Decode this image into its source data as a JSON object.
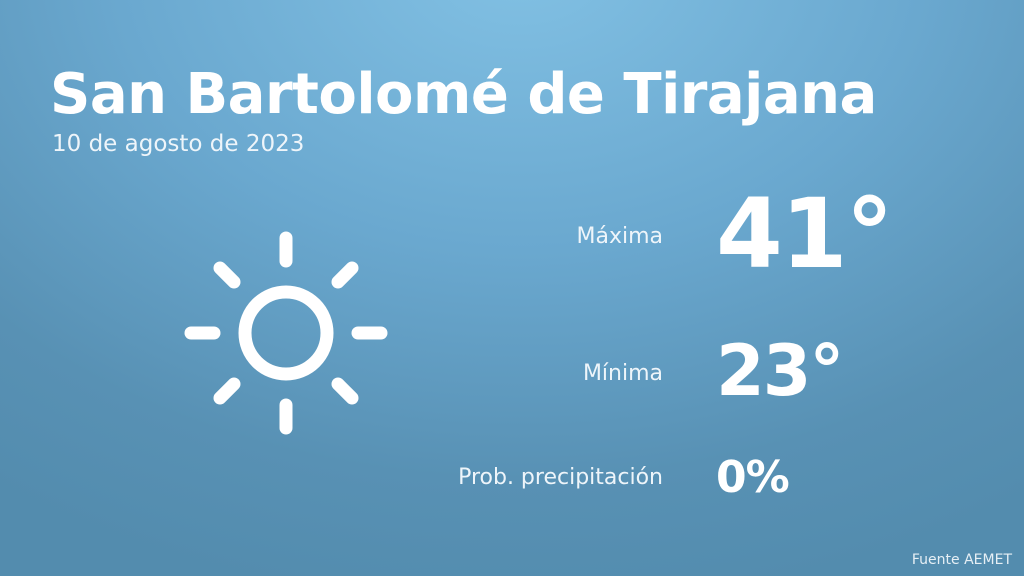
{
  "header": {
    "title": "San Bartolomé de Tirajana",
    "date": "10 de agosto de 2023"
  },
  "weather": {
    "icon": "sun-icon",
    "max_label": "Máxima",
    "max_value": "41°",
    "min_label": "Mínima",
    "min_value": "23°",
    "precip_label": "Prob. precipitación",
    "precip_value": "0%"
  },
  "footer": {
    "source": "Fuente AEMET"
  },
  "colors": {
    "background_top": "#82c1e4",
    "background_bottom": "#538cae",
    "text": "#ffffff"
  }
}
